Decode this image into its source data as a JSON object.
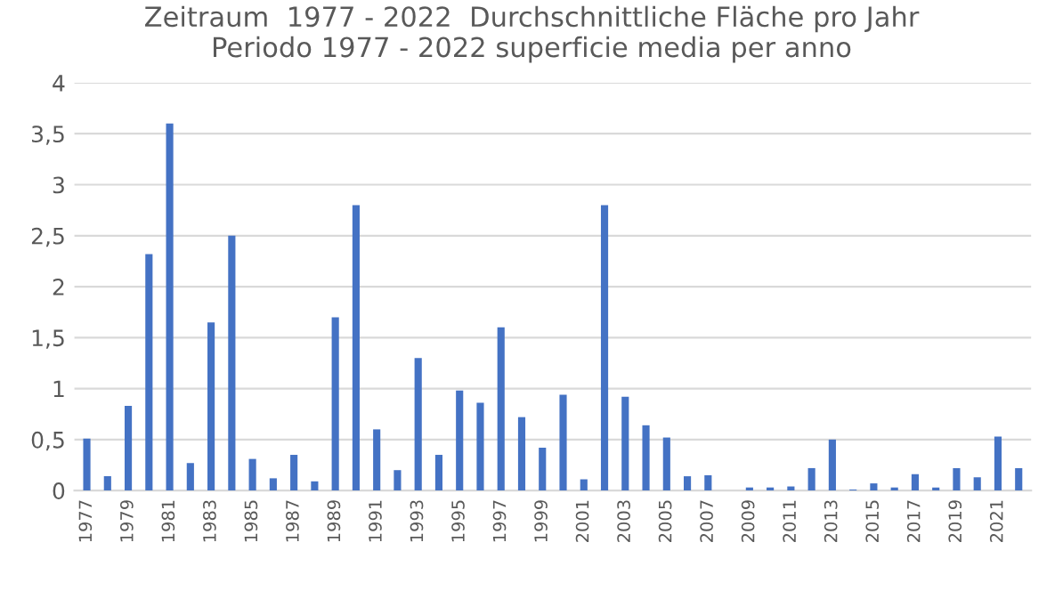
{
  "chart_data": {
    "type": "bar",
    "title": "Zeitraum  1977 - 2022  Durchschnittliche Fläche pro Jahr\nPeriodo 1977 - 2022 superficie media per anno",
    "categories": [
      "1977",
      null,
      "1979",
      null,
      "1981",
      null,
      "1983",
      null,
      "1985",
      null,
      "1987",
      null,
      "1989",
      null,
      "1991",
      null,
      "1993",
      null,
      "1995",
      null,
      "1997",
      null,
      "1999",
      null,
      "2001",
      null,
      "2003",
      null,
      "2005",
      null,
      "2007",
      null,
      "2009",
      null,
      "2011",
      null,
      "2013",
      null,
      "2015",
      null,
      "2017",
      null,
      "2019",
      null,
      "2021",
      null
    ],
    "values": [
      0.51,
      0.14,
      0.83,
      2.32,
      3.6,
      0.27,
      1.65,
      2.5,
      0.31,
      0.12,
      0.35,
      0.09,
      1.7,
      2.8,
      0.6,
      0.2,
      1.3,
      0.35,
      0.98,
      0.86,
      1.6,
      0.72,
      0.42,
      0.94,
      0.11,
      2.8,
      0.92,
      0.64,
      0.52,
      0.14,
      0.15,
      0,
      0.03,
      0.03,
      0.04,
      0.22,
      0.5,
      0.01,
      0.07,
      0.03,
      0.16,
      0.03,
      0.22,
      0.13,
      0.53,
      0.22
    ],
    "color": "#4472c4",
    "ylim": [
      0,
      4
    ],
    "yticks": [
      0,
      {
        "value": 0.5,
        "label": "0,5"
      },
      1,
      {
        "value": 1.5,
        "label": "1,5"
      },
      2,
      {
        "value": 2.5,
        "label": "2,5"
      },
      3,
      {
        "value": 3.5,
        "label": "3,5"
      },
      4
    ],
    "grid": "y"
  }
}
